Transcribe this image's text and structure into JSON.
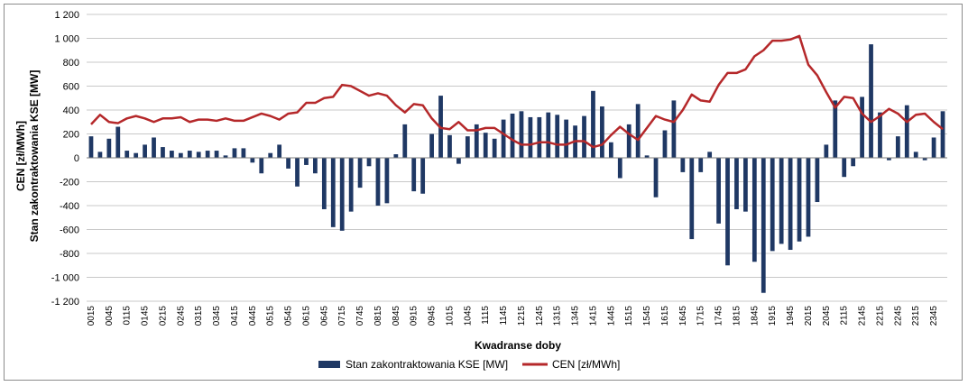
{
  "chart_data": {
    "type": "bar",
    "xlabel": "Kwadranse doby",
    "ylabel_line1": "CEN  [zł/MWh]",
    "ylabel_line2": "Stan zakontraktowania KSE [MW]",
    "ylim": [
      -1200,
      1200
    ],
    "ystep": 200,
    "y_tick_labels": [
      "-1 200",
      "-1 000",
      "-800",
      "-600",
      "-400",
      "-200",
      "0",
      "200",
      "400",
      "600",
      "800",
      "1 000",
      "1 200"
    ],
    "x_tick_labels": [
      "0015",
      "0045",
      "0115",
      "0145",
      "0215",
      "0245",
      "0315",
      "0345",
      "0415",
      "0445",
      "0515",
      "0545",
      "0615",
      "0645",
      "0715",
      "0745",
      "0815",
      "0845",
      "0915",
      "0945",
      "1015",
      "1045",
      "1115",
      "1145",
      "1215",
      "1245",
      "1315",
      "1345",
      "1415",
      "1445",
      "1515",
      "1545",
      "1615",
      "1645",
      "1715",
      "1745",
      "1815",
      "1845",
      "1915",
      "1945",
      "2015",
      "2045",
      "2115",
      "2145",
      "2215",
      "2245",
      "2315",
      "2345"
    ],
    "grid": "horizontal",
    "legend_position": "bottom",
    "series": [
      {
        "name": "Stan zakontraktowania KSE [MW]",
        "kind": "bar",
        "color": "#1f3864",
        "values": [
          180,
          50,
          160,
          260,
          60,
          40,
          110,
          170,
          90,
          60,
          40,
          60,
          50,
          60,
          60,
          20,
          80,
          80,
          -40,
          -130,
          40,
          110,
          -90,
          -240,
          -60,
          -130,
          -430,
          -580,
          -610,
          -450,
          -250,
          -70,
          -400,
          -380,
          30,
          280,
          -280,
          -300,
          200,
          520,
          190,
          -50,
          180,
          280,
          210,
          160,
          320,
          370,
          390,
          340,
          340,
          380,
          360,
          320,
          270,
          350,
          560,
          430,
          130,
          -170,
          280,
          450,
          20,
          -330,
          230,
          480,
          -120,
          -680,
          -120,
          50,
          -550,
          -900,
          -430,
          -450,
          -870,
          -1130,
          -780,
          -720,
          -770,
          -700,
          -660,
          -370,
          110,
          480,
          -160,
          -70,
          510,
          950,
          380,
          -20,
          180,
          440,
          50,
          -20,
          170,
          390
        ]
      },
      {
        "name": "CEN [zł/MWh]",
        "kind": "line",
        "color": "#b5282a",
        "values": [
          280,
          360,
          300,
          290,
          330,
          350,
          330,
          300,
          330,
          330,
          340,
          300,
          320,
          320,
          310,
          330,
          310,
          310,
          340,
          370,
          350,
          320,
          370,
          380,
          460,
          460,
          500,
          510,
          610,
          600,
          560,
          520,
          540,
          520,
          440,
          380,
          450,
          440,
          330,
          250,
          240,
          300,
          230,
          230,
          250,
          250,
          200,
          150,
          110,
          110,
          130,
          130,
          110,
          110,
          140,
          140,
          90,
          110,
          190,
          260,
          200,
          150,
          250,
          350,
          320,
          300,
          400,
          530,
          480,
          470,
          610,
          710,
          710,
          740,
          850,
          900,
          980,
          980,
          990,
          1020,
          780,
          690,
          550,
          420,
          510,
          500,
          370,
          300,
          350,
          410,
          370,
          300,
          360,
          370,
          300,
          240
        ]
      }
    ]
  }
}
